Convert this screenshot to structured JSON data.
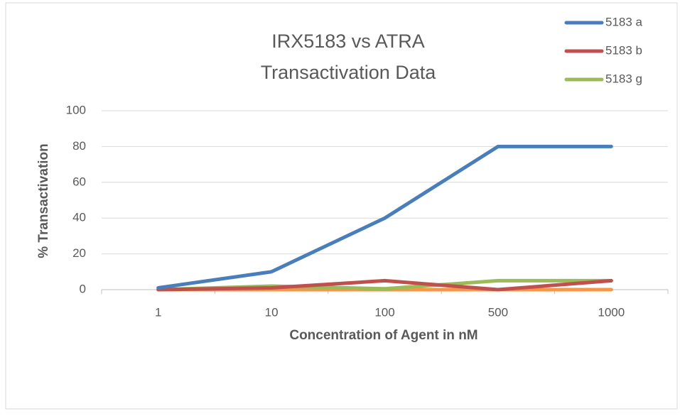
{
  "chart_data": {
    "type": "line",
    "title": [
      "IRX5183 vs ATRA",
      "Transactivation Data"
    ],
    "x_label": "Concentration of  Agent in nM",
    "y_label": "% Transactivation",
    "categories": [
      "1",
      "10",
      "100",
      "500",
      "1000"
    ],
    "series": [
      {
        "name": "5183 a",
        "color": "#4a7ebb",
        "values": [
          1,
          10,
          40,
          80,
          80
        ]
      },
      {
        "name": "5183 b",
        "color": "#c0504d",
        "values": [
          0,
          1,
          5,
          0,
          5
        ]
      },
      {
        "name": "5183 g",
        "color": "#9bbb59",
        "values": [
          0,
          2,
          0.5,
          5,
          5
        ]
      },
      {
        "color": "#f79646",
        "values": [
          0,
          0,
          0,
          0,
          0
        ]
      }
    ],
    "ylim": [
      0,
      100
    ],
    "yticks": [
      0,
      20,
      40,
      60,
      80,
      100
    ],
    "grid": true,
    "legend": "top-right"
  }
}
